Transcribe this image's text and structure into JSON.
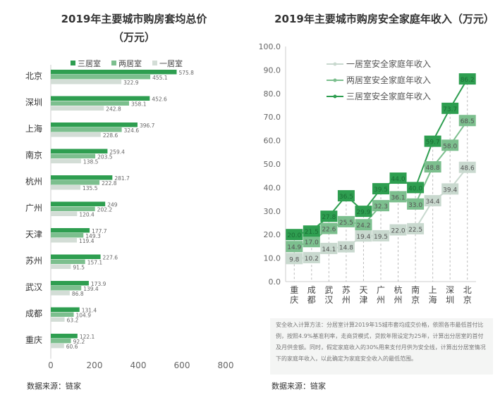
{
  "chart_data": [
    {
      "type": "bar",
      "orientation": "horizontal",
      "title": "2019年主要城市购房套均总价",
      "subtitle": "（万元）",
      "categories": [
        "北京",
        "深圳",
        "上海",
        "南京",
        "杭州",
        "广州",
        "天津",
        "苏州",
        "武汉",
        "成都",
        "重庆"
      ],
      "series": [
        {
          "name": "三居室",
          "color": "#2e9e50",
          "values": [
            575.8,
            452.6,
            396.7,
            259.4,
            281.7,
            249,
            177.7,
            227.6,
            173.9,
            131.4,
            122.1
          ]
        },
        {
          "name": "两居室",
          "color": "#7cbf8e",
          "values": [
            455.1,
            358.1,
            324.6,
            203.5,
            222.8,
            202.2,
            149.3,
            157.1,
            139.4,
            104.9,
            92.2
          ]
        },
        {
          "name": "一居室",
          "color": "#d3ddd6",
          "values": [
            322.9,
            242.8,
            228.6,
            138.5,
            135.5,
            120.4,
            119.4,
            91.5,
            86.8,
            63.2,
            60.6
          ]
        }
      ],
      "xlim": [
        0,
        800
      ],
      "xticks": [
        "0",
        "200",
        "400",
        "600",
        "800"
      ],
      "legend": "top",
      "source": "数据来源：链家"
    },
    {
      "type": "line",
      "title": "2019年主要城市购房安全家庭年收入（万元）",
      "categories": [
        "重庆",
        "成都",
        "武汉",
        "苏州",
        "天津",
        "广州",
        "杭州",
        "南京",
        "上海",
        "深圳",
        "北京"
      ],
      "series": [
        {
          "name": "一居室安全家庭年收入",
          "color": "#c9d9cf",
          "values": [
            9.8,
            10.2,
            14.1,
            14.8,
            19.4,
            19.5,
            22.0,
            22.5,
            34.4,
            39.4,
            48.6
          ]
        },
        {
          "name": "两居室安全家庭年收入",
          "color": "#7cbf8e",
          "values": [
            14.9,
            17.0,
            22.6,
            25.5,
            24.2,
            32.3,
            36.1,
            33.0,
            48.8,
            58.0,
            68.5
          ]
        },
        {
          "name": "三居室安全家庭年收入",
          "color": "#2e9e50",
          "values": [
            20.0,
            21.5,
            27.8,
            36.5,
            29.9,
            39.5,
            44.0,
            40.0,
            59.7,
            73.7,
            86.2
          ]
        }
      ],
      "ylim": [
        0,
        100
      ],
      "yticks": [
        "0.0",
        "10.0",
        "20.0",
        "30.0",
        "40.0",
        "50.0",
        "60.0",
        "70.0",
        "80.0",
        "90.0",
        "100.0"
      ],
      "legend": "top-left",
      "note": "安全收入计算方法：分居室计算2019年15城市套均成交价格，依照各市最低首付比例，按照4.9%基准利率，走商贷模式，贷款年限设定为25年，计算出分居室的首付及月供金额。同时，假定家庭收入的30%用来支付月供为安全线，计算出分居室情况下的家庭年收入，以此确定为家庭安全收入的最低范围。",
      "source": "数据来源：链家"
    }
  ]
}
